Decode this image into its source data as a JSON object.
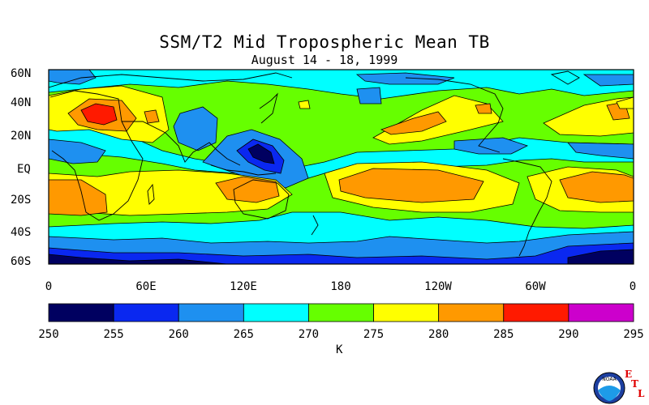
{
  "title": "SSM/T2 Mid Tropospheric Mean TB",
  "subtitle": "August 14 - 18, 1999",
  "map": {
    "lat_labels": [
      "60N",
      "40N",
      "20N",
      "EQ",
      "20S",
      "40S",
      "60S"
    ],
    "lon_labels": [
      "0",
      "60E",
      "120E",
      "180",
      "120W",
      "60W",
      "0"
    ],
    "lat_range": [
      -60,
      60
    ],
    "lon_range": [
      0,
      360
    ],
    "regions": [
      {
        "name": "warm-sahara",
        "value": 282
      },
      {
        "name": "hot-core-north-africa",
        "value": 287
      },
      {
        "name": "cold-core-western-pacific",
        "value": 258
      },
      {
        "name": "warm-central-pacific",
        "value": 282
      },
      {
        "name": "warm-south-atlantic",
        "value": 282
      },
      {
        "name": "warm-south-indian",
        "value": 282
      },
      {
        "name": "cold-antarctic-band",
        "value": 252
      }
    ]
  },
  "colorbar": {
    "ticks": [
      "250",
      "255",
      "260",
      "265",
      "270",
      "275",
      "280",
      "285",
      "290",
      "295"
    ],
    "colors": [
      "#000060",
      "#0a28f0",
      "#1e90f0",
      "#00ffff",
      "#66ff00",
      "#ffff00",
      "#ff9900",
      "#ff1a00",
      "#cc00cc"
    ],
    "unit": "K"
  },
  "logo": {
    "text": "NOAA",
    "letters": [
      "E",
      "T",
      "L"
    ]
  }
}
